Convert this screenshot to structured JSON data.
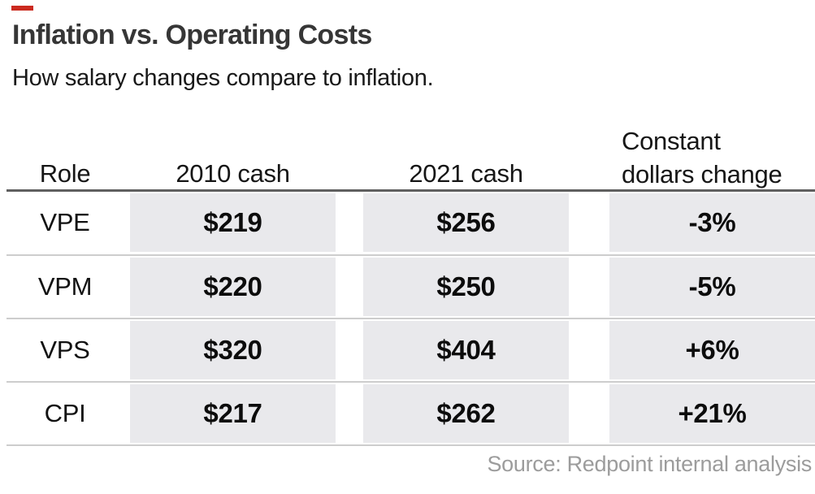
{
  "accent_color": "#cb2a1f",
  "band_color": "#e9e9ec",
  "header": {
    "title": "Inflation vs. Operating Costs",
    "subtitle": "How salary changes compare to inflation."
  },
  "table": {
    "headers": {
      "role": "Role",
      "cash2010": "2010 cash",
      "cash2021": "2021 cash",
      "constant_line1": "Constant",
      "constant_line2": "dollars change"
    },
    "rows": [
      {
        "role": "VPE",
        "cash2010": "$219",
        "cash2021": "$256",
        "change": "-3%"
      },
      {
        "role": "VPM",
        "cash2010": "$220",
        "cash2021": "$250",
        "change": "-5%"
      },
      {
        "role": "VPS",
        "cash2010": "$320",
        "cash2021": "$404",
        "change": "+6%"
      },
      {
        "role": "CPI",
        "cash2010": "$217",
        "cash2021": "$262",
        "change": "+21%"
      }
    ]
  },
  "source": "Source: Redpoint internal analysis",
  "chart_data": {
    "type": "table",
    "title": "Inflation vs. Operating Costs",
    "subtitle": "How salary changes compare to inflation.",
    "columns": [
      "Role",
      "2010 cash",
      "2021 cash",
      "Constant dollars change"
    ],
    "rows": [
      [
        "VPE",
        219,
        256,
        "-3%"
      ],
      [
        "VPM",
        220,
        250,
        "-5%"
      ],
      [
        "VPS",
        320,
        404,
        "+6%"
      ],
      [
        "CPI",
        217,
        262,
        "+21%"
      ]
    ],
    "value_columns_highlighted": true,
    "source": "Source: Redpoint internal analysis"
  }
}
